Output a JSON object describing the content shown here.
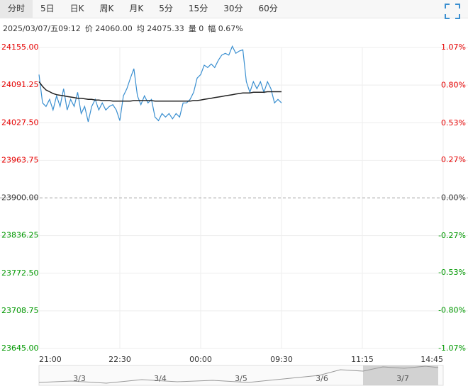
{
  "tabs": [
    "分时",
    "5日",
    "日K",
    "周K",
    "月K",
    "5分",
    "15分",
    "30分",
    "60分"
  ],
  "info": [
    "2025/03/07/五09:12",
    "价 24060.00",
    "均 24075.33",
    "量 0",
    "幅 0.67%"
  ],
  "chart_data": {
    "type": "line",
    "xlim": [
      0,
      115
    ],
    "xticks": [
      {
        "value": 0,
        "label": "21:00"
      },
      {
        "value": 23,
        "label": "22:30"
      },
      {
        "value": 46,
        "label": "00:00"
      },
      {
        "value": 69,
        "label": "09:30"
      },
      {
        "value": 92,
        "label": "11:15"
      },
      {
        "value": 115,
        "label": "14:45"
      }
    ],
    "ylim": [
      23645,
      24155
    ],
    "yticks": [
      {
        "value": 24155,
        "label": "24155.00"
      },
      {
        "value": 24091.25,
        "label": "24091.25"
      },
      {
        "value": 24027.5,
        "label": "24027.50"
      },
      {
        "value": 23963.75,
        "label": "23963.75"
      },
      {
        "value": 23900,
        "label": "23900.00"
      },
      {
        "value": 23836.25,
        "label": "23836.25"
      },
      {
        "value": 23772.5,
        "label": "23772.50"
      },
      {
        "value": 23708.75,
        "label": "23708.75"
      },
      {
        "value": 23645,
        "label": "23645.00"
      }
    ],
    "y2lim": [
      -1.07,
      1.07
    ],
    "y2ticks": [
      {
        "value": 1.07,
        "label": "1.07%"
      },
      {
        "value": 0.8,
        "label": "0.80%"
      },
      {
        "value": 0.53,
        "label": "0.53%"
      },
      {
        "value": 0.27,
        "label": "0.27%"
      },
      {
        "value": 0,
        "label": "0.00%"
      },
      {
        "value": -0.27,
        "label": "-0.27%"
      },
      {
        "value": -0.53,
        "label": "-0.53%"
      },
      {
        "value": -0.8,
        "label": "-0.80%"
      },
      {
        "value": -1.07,
        "label": "-1.07%"
      }
    ],
    "grid": true,
    "up_color": "#e60000",
    "down_color": "#009900",
    "series": [
      {
        "color": "#3a8fd0",
        "x": [
          0,
          1,
          2,
          3,
          4,
          5,
          6,
          7,
          8,
          9,
          10,
          11,
          12,
          13,
          14,
          15,
          16,
          17,
          18,
          19,
          20,
          21,
          22,
          23,
          24,
          25,
          26,
          27,
          28,
          29,
          30,
          31,
          32,
          33,
          34,
          35,
          36,
          37,
          38,
          39,
          40,
          41,
          42,
          43,
          44,
          45,
          46,
          47,
          48,
          49,
          50,
          51,
          52,
          53,
          54,
          55,
          56,
          57,
          58,
          59,
          60,
          61,
          62,
          63,
          64,
          65,
          66,
          67,
          68,
          69
        ],
        "values": [
          24109,
          24061,
          24055,
          24067,
          24049,
          24073,
          24055,
          24085,
          24049,
          24067,
          24055,
          24079,
          24043,
          24055,
          24029,
          24055,
          24067,
          24049,
          24061,
          24049,
          24055,
          24058,
          24049,
          24031,
          24073,
          24085,
          24103,
          24119,
          24073,
          24058,
          24073,
          24061,
          24067,
          24037,
          24031,
          24043,
          24037,
          24043,
          24034,
          24043,
          24037,
          24061,
          24061,
          24067,
          24079,
          24103,
          24109,
          24125,
          24121,
          24127,
          24121,
          24133,
          24142,
          24145,
          24142,
          24157,
          24145,
          24149,
          24151,
          24097,
          24079,
          24097,
          24085,
          24097,
          24079,
          24097,
          24085,
          24061,
          24067,
          24061
        ]
      },
      {
        "color": "#222222",
        "x": [
          0,
          1,
          2,
          3,
          4,
          5,
          6,
          7,
          8,
          9,
          10,
          11,
          12,
          13,
          14,
          15,
          16,
          17,
          18,
          19,
          20,
          21,
          22,
          23,
          24,
          25,
          26,
          27,
          28,
          29,
          30,
          31,
          32,
          33,
          34,
          35,
          36,
          37,
          38,
          39,
          40,
          41,
          42,
          43,
          44,
          45,
          46,
          47,
          48,
          49,
          50,
          51,
          52,
          53,
          54,
          55,
          56,
          57,
          58,
          59,
          60,
          61,
          62,
          63,
          64,
          65,
          66,
          67,
          68,
          69
        ],
        "values": [
          24097,
          24089,
          24083,
          24080,
          24077,
          24075,
          24074,
          24073,
          24072,
          24071,
          24070,
          24069,
          24069,
          24068,
          24067,
          24067,
          24066,
          24066,
          24065,
          24065,
          24065,
          24064,
          24064,
          24064,
          24064,
          24064,
          24064,
          24065,
          24065,
          24065,
          24065,
          24065,
          24065,
          24064,
          24064,
          24064,
          24064,
          24064,
          24064,
          24064,
          24064,
          24064,
          24064,
          24064,
          24065,
          24065,
          24066,
          24067,
          24068,
          24069,
          24070,
          24071,
          24072,
          24073,
          24074,
          24075,
          24076,
          24077,
          24078,
          24078,
          24078,
          24079,
          24079,
          24079,
          24079,
          24080,
          24080,
          24080,
          24080,
          24080
        ]
      }
    ],
    "navigator": [
      "3/3",
      "3/4",
      "3/5",
      "3/6",
      "3/7"
    ]
  }
}
